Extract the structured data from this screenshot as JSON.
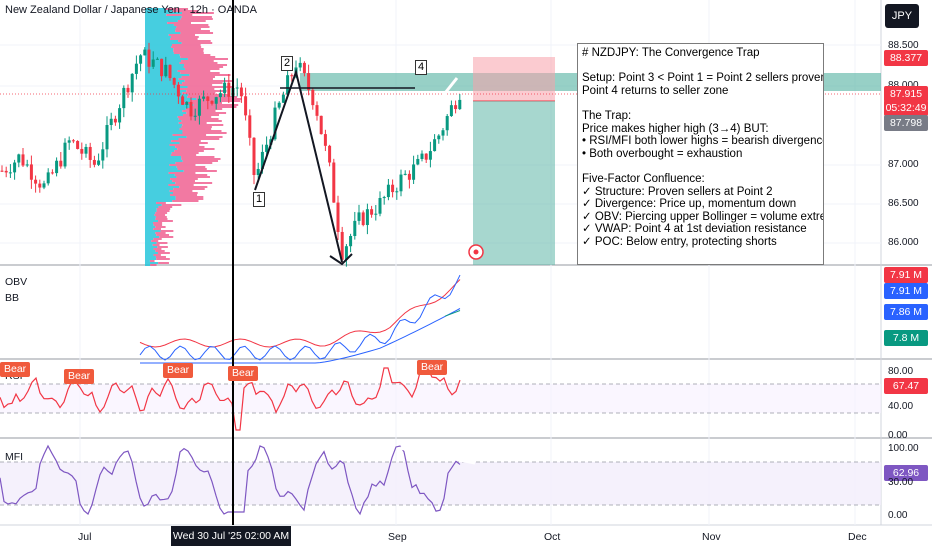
{
  "header": {
    "title": "New Zealand Dollar / Japanese Yen · 12h · OANDA",
    "currency_button": "JPY"
  },
  "annotation": {
    "lines": [
      "# NZDJPY: The Convergence Trap",
      "",
      "Setup: Point 3 < Point 1 = Point 2 sellers proven",
      "Point 4 returns to seller zone",
      "",
      "The Trap:",
      "Price makes higher high (3→4) BUT:",
      "• RSI/MFI both lower highs = bearish divergence",
      "• Both overbought = exhaustion",
      "",
      "Five-Factor Confluence:",
      "✓ Structure: Proven sellers at Point 2",
      "✓ Divergence: Price up, momentum down",
      "✓ OBV: Piercing upper Bollinger = volume extreme",
      "✓ VWAP: Point 4 at 1st deviation resistance",
      "✓ POC: Below entry, protecting shorts"
    ]
  },
  "points": [
    "1",
    "2",
    "4"
  ],
  "panes": {
    "obv": "OBV",
    "bb": "BB",
    "rsi": "RSI",
    "mfi": "MFI"
  },
  "bear_labels": [
    "Bear",
    "Bear",
    "Bear",
    "Bear",
    "Bear"
  ],
  "price_axis": {
    "ticks": [
      "88.500",
      "88.000",
      "87.000",
      "86.500",
      "86.000"
    ],
    "stop_tag": "88.377",
    "last_price": "87.915",
    "countdown": "05:32:49",
    "entry_tag": "87.798"
  },
  "obv_axis": {
    "tags": [
      "7.91 M",
      "7.91 M",
      "7.86 M",
      "7.8 M"
    ]
  },
  "rsi_axis": {
    "ticks": [
      "80.00",
      "40.00",
      "0.00"
    ],
    "tag": "67.47"
  },
  "mfi_axis": {
    "ticks": [
      "100.00",
      "30.00",
      "0.00"
    ],
    "tag": "62.96"
  },
  "x_axis": {
    "labels": [
      "Jul",
      "Sep",
      "Oct",
      "Nov",
      "Dec"
    ],
    "crosshair": "Wed 30 Jul '25   02:00 AM"
  },
  "colors": {
    "up": "#089981",
    "down": "#f23645",
    "rsi": "#f23645",
    "mfi": "#7e57c2",
    "obv_line": "#2962ff",
    "bb_upper": "#f23645",
    "bb_lower": "#2962ff",
    "bb_mid": "#089981",
    "vp_up": "#26c6da",
    "vp_down": "#f06292",
    "zone": "#5fb7a8"
  },
  "chart_data": {
    "type": "line",
    "series": [
      {
        "values": [
          86.9,
          86.5,
          87.5,
          88.3,
          88.1,
          87.0,
          86.8,
          86.3,
          86.2,
          86.0,
          85.8,
          86.3,
          86.5,
          86.7,
          87.0,
          87.4,
          87.6,
          87.9
        ]
      },
      {
        "values": [
          64,
          65,
          50,
          60,
          55,
          62,
          40,
          68,
          75,
          78,
          70,
          64,
          58,
          60,
          70,
          78,
          74,
          67.47
        ]
      },
      {
        "values": [
          60,
          40,
          70,
          30,
          80,
          10,
          75,
          50,
          20,
          95,
          90,
          85,
          80,
          75,
          70,
          60,
          65,
          62.96
        ]
      }
    ],
    "annotations": [
      "1",
      "2",
      "4",
      "Bear"
    ]
  }
}
